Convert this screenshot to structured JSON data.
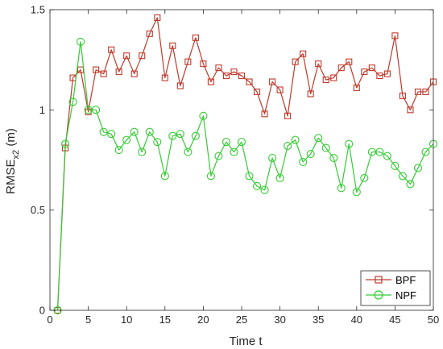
{
  "chart_data": {
    "type": "line",
    "title": "",
    "xlabel": "Time t",
    "ylabel_main": "RMSE",
    "ylabel_sub": "x2",
    "ylabel_unit": " (m)",
    "xlim": [
      0,
      50
    ],
    "ylim": [
      0,
      1.5
    ],
    "xticks": [
      0,
      5,
      10,
      15,
      20,
      25,
      30,
      35,
      40,
      45,
      50
    ],
    "yticks": [
      0,
      0.5,
      1,
      1.5
    ],
    "ytick_labels": [
      "0",
      "0.5",
      "1",
      "1.5"
    ],
    "grid": false,
    "legend_position": "bottom-right",
    "x": [
      1,
      2,
      3,
      4,
      5,
      6,
      7,
      8,
      9,
      10,
      11,
      12,
      13,
      14,
      15,
      16,
      17,
      18,
      19,
      20,
      21,
      22,
      23,
      24,
      25,
      26,
      27,
      28,
      29,
      30,
      31,
      32,
      33,
      34,
      35,
      36,
      37,
      38,
      39,
      40,
      41,
      42,
      43,
      44,
      45,
      46,
      47,
      48,
      49,
      50
    ],
    "series": [
      {
        "name": "BPF",
        "color": "#c0392b",
        "marker": "square",
        "values": [
          0,
          0.81,
          1.16,
          1.2,
          0.99,
          1.2,
          1.18,
          1.3,
          1.19,
          1.27,
          1.18,
          1.27,
          1.38,
          1.46,
          1.16,
          1.32,
          1.12,
          1.24,
          1.36,
          1.23,
          1.14,
          1.21,
          1.17,
          1.19,
          1.17,
          1.14,
          1.09,
          0.98,
          1.14,
          1.1,
          0.97,
          1.24,
          1.28,
          1.08,
          1.23,
          1.15,
          1.16,
          1.21,
          1.24,
          1.11,
          1.19,
          1.21,
          1.17,
          1.18,
          1.37,
          1.07,
          1.0,
          1.09,
          1.09,
          1.14
        ]
      },
      {
        "name": "NPF",
        "color": "#33cc33",
        "marker": "circle",
        "values": [
          0,
          0.83,
          1.04,
          1.34,
          1.0,
          1.0,
          0.89,
          0.88,
          0.8,
          0.85,
          0.89,
          0.79,
          0.89,
          0.84,
          0.67,
          0.87,
          0.88,
          0.79,
          0.87,
          0.97,
          0.67,
          0.77,
          0.84,
          0.79,
          0.84,
          0.67,
          0.62,
          0.6,
          0.76,
          0.66,
          0.82,
          0.85,
          0.74,
          0.78,
          0.86,
          0.81,
          0.76,
          0.61,
          0.83,
          0.59,
          0.66,
          0.79,
          0.79,
          0.77,
          0.72,
          0.67,
          0.63,
          0.71,
          0.79,
          0.83
        ]
      }
    ]
  }
}
